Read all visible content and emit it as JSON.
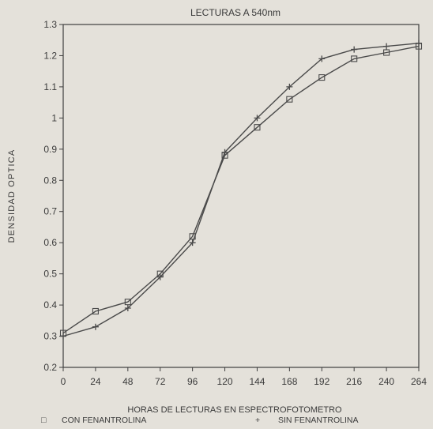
{
  "chart_data": {
    "type": "line",
    "title": "LECTURAS A 540nm",
    "xlabel": "HORAS DE LECTURAS EN ESPECTROFOTOMETRO",
    "ylabel": "DENSIDAD OPTICA",
    "x": [
      0,
      24,
      48,
      72,
      96,
      120,
      144,
      168,
      192,
      216,
      240,
      264
    ],
    "x_ticks": [
      "0",
      "24",
      "48",
      "72",
      "96",
      "120",
      "144",
      "168",
      "192",
      "216",
      "240",
      "264"
    ],
    "y_ticks": [
      "0.2",
      "0.3",
      "0.4",
      "0.5",
      "0.6",
      "0.7",
      "0.8",
      "0.9",
      "1",
      "1.1",
      "1.2",
      "1.3"
    ],
    "xlim": [
      0,
      264
    ],
    "ylim": [
      0.2,
      1.3
    ],
    "grid": false,
    "legend_position": "bottom",
    "series": [
      {
        "name": "CON FENANTROLINA",
        "marker": "square",
        "legend_symbol": "□",
        "values": [
          0.31,
          0.38,
          0.41,
          0.5,
          0.62,
          0.88,
          0.97,
          1.06,
          1.13,
          1.19,
          1.21,
          1.23
        ]
      },
      {
        "name": "SIN FENANTROLINA",
        "marker": "plus",
        "legend_symbol": "+",
        "values": [
          0.3,
          0.33,
          0.39,
          0.49,
          0.6,
          0.89,
          1.0,
          1.1,
          1.19,
          1.22,
          1.23,
          1.24
        ]
      }
    ],
    "colors": {
      "background": "#e4e1da",
      "axis": "#3e3e3e",
      "line": "#4a4a4a",
      "text": "#3b3b3b"
    }
  }
}
